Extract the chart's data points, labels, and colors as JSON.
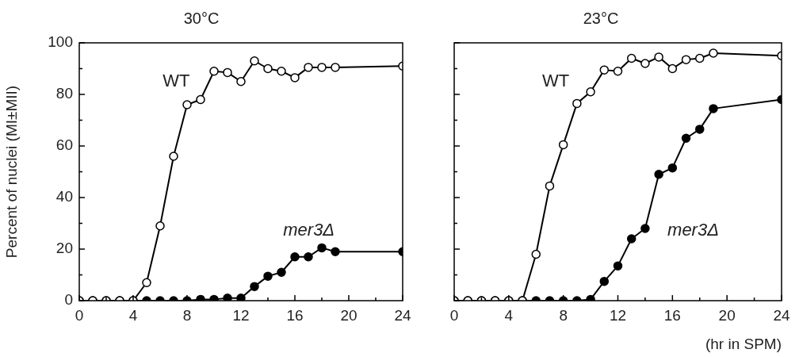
{
  "chart_data": [
    {
      "type": "line",
      "title": "30°C",
      "ylabel": "Percent of nuclei (MI±MII)",
      "marker": "circle",
      "line_style": "solid",
      "grid": false,
      "legend": false,
      "x": [
        0,
        1,
        2,
        3,
        4,
        5,
        6,
        7,
        8,
        9,
        10,
        11,
        12,
        13,
        14,
        15,
        16,
        17,
        18,
        19,
        24
      ],
      "series": [
        {
          "name": "WT",
          "color": "#000000",
          "values": [
            0,
            0,
            0,
            0,
            0,
            7,
            29,
            56,
            76,
            78,
            89,
            88.5,
            85,
            93,
            90,
            89,
            86.5,
            90.5,
            90.5,
            90.5,
            91
          ]
        },
        {
          "name": "mer3Δ",
          "color": "#000000",
          "values": [
            0,
            0,
            0,
            0,
            0,
            0,
            0,
            0,
            0,
            0.5,
            0.5,
            1,
            1,
            5.5,
            9.5,
            11,
            17,
            17,
            20.5,
            19,
            19
          ]
        }
      ],
      "xlim": [
        0,
        24
      ],
      "xticks": [
        0,
        {
          "value": 2,
          "label": null
        },
        4,
        {
          "value": 6,
          "label": null
        },
        8,
        {
          "value": 10,
          "label": null
        },
        12,
        {
          "value": 14,
          "label": null
        },
        16,
        {
          "value": 18,
          "label": null
        },
        20,
        {
          "value": 22,
          "label": null
        },
        24
      ],
      "ylim": [
        0,
        100
      ],
      "yticks": [
        0,
        {
          "value": 10,
          "label": null
        },
        20,
        {
          "value": 30,
          "label": null
        },
        40,
        {
          "value": 50,
          "label": null
        },
        60,
        {
          "value": 70,
          "label": null
        },
        80,
        {
          "value": 90,
          "label": null
        },
        100
      ]
    },
    {
      "type": "line",
      "title": "23°C",
      "xlabel": "(hr in SPM)",
      "marker": "circle",
      "line_style": "solid",
      "grid": false,
      "legend": false,
      "tick_labels": "x",
      "x": [
        0,
        1,
        2,
        3,
        4,
        5,
        6,
        7,
        8,
        9,
        10,
        11,
        12,
        13,
        14,
        15,
        16,
        17,
        18,
        19,
        24
      ],
      "series": [
        {
          "name": "WT",
          "color": "#000000",
          "values": [
            0,
            0,
            0,
            0,
            0,
            0,
            18,
            44.5,
            60.5,
            76.5,
            81,
            89.5,
            89,
            94,
            92,
            94.5,
            90,
            93.5,
            94,
            96,
            95
          ]
        },
        {
          "name": "mer3Δ",
          "color": "#000000",
          "values": [
            0,
            0,
            0,
            0,
            0,
            0,
            0,
            0,
            0,
            0,
            0.5,
            7.5,
            13.5,
            24,
            28,
            49,
            51.5,
            63,
            66.5,
            74.5,
            78
          ]
        }
      ],
      "xlim": [
        0,
        24
      ],
      "xticks": [
        0,
        {
          "value": 2,
          "label": null
        },
        4,
        {
          "value": 6,
          "label": null
        },
        8,
        {
          "value": 10,
          "label": null
        },
        12,
        {
          "value": 14,
          "label": null
        },
        16,
        {
          "value": 18,
          "label": null
        },
        20,
        {
          "value": 22,
          "label": null
        },
        24
      ],
      "ylim": [
        0,
        100
      ],
      "yticks": [
        0,
        {
          "value": 10,
          "label": null
        },
        20,
        {
          "value": 30,
          "label": null
        },
        40,
        {
          "value": 50,
          "label": null
        },
        60,
        {
          "value": 70,
          "label": null
        },
        80,
        {
          "value": 90,
          "label": null
        },
        100
      ]
    }
  ]
}
